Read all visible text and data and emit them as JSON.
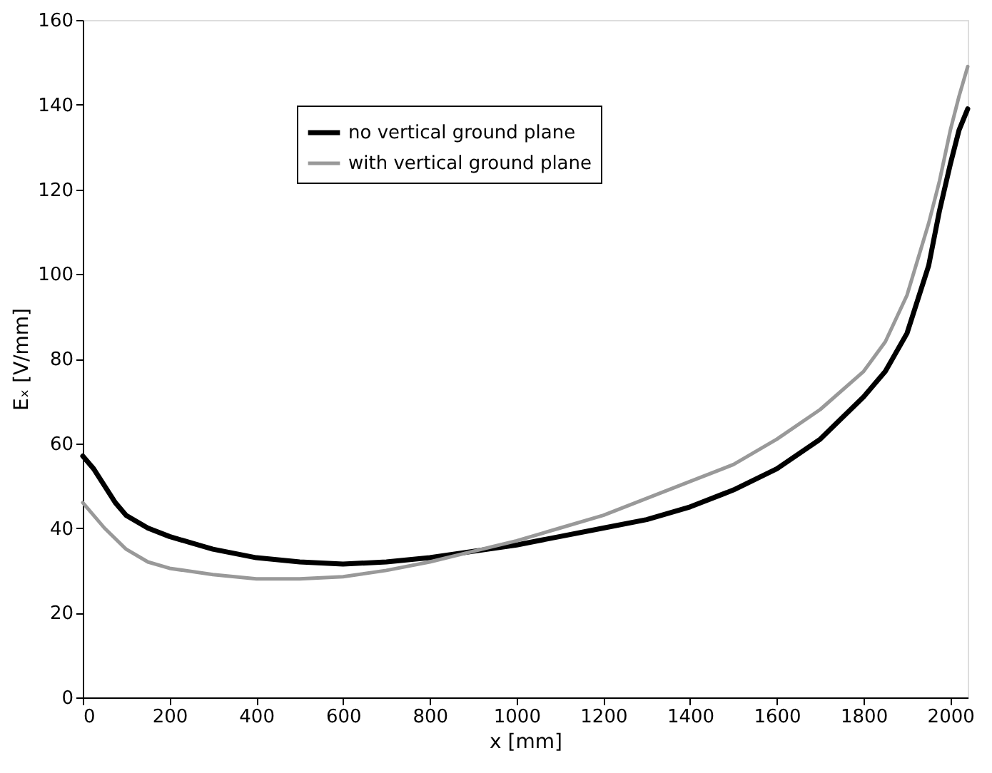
{
  "chart_data": {
    "type": "line",
    "xlabel": "x [mm]",
    "ylabel": "Eₓ [V/mm]",
    "xlim": [
      0,
      2040
    ],
    "ylim": [
      0,
      160
    ],
    "xticks": [
      0,
      200,
      400,
      600,
      800,
      1000,
      1200,
      1400,
      1600,
      1800,
      2000
    ],
    "yticks": [
      0,
      20,
      40,
      60,
      80,
      100,
      120,
      140,
      160
    ],
    "grid": false,
    "legend": "top left",
    "line_style": "solid",
    "marker": "none",
    "series": [
      {
        "name": "no vertical ground plane",
        "color": "#000000",
        "x": [
          0,
          25,
          50,
          75,
          100,
          150,
          200,
          300,
          400,
          500,
          600,
          700,
          800,
          900,
          1000,
          1100,
          1200,
          1300,
          1400,
          1500,
          1600,
          1700,
          1800,
          1850,
          1900,
          1950,
          1975,
          2000,
          2020,
          2040
        ],
        "values": [
          57,
          54,
          50,
          46,
          43,
          40,
          38,
          35,
          33,
          32,
          31.5,
          32,
          33,
          34.5,
          36,
          38,
          40,
          42,
          45,
          49,
          54,
          61,
          71,
          77,
          86,
          102,
          115,
          126,
          134,
          139
        ]
      },
      {
        "name": "with vertical ground plane",
        "color": "#999999",
        "x": [
          0,
          50,
          100,
          150,
          200,
          300,
          400,
          500,
          600,
          700,
          800,
          900,
          1000,
          1100,
          1200,
          1300,
          1400,
          1500,
          1600,
          1700,
          1800,
          1850,
          1900,
          1950,
          1975,
          2000,
          2020,
          2040
        ],
        "values": [
          46,
          40,
          35,
          32,
          30.5,
          29,
          28,
          28,
          28.5,
          30,
          32,
          34.5,
          37,
          40,
          43,
          47,
          51,
          55,
          61,
          68,
          77,
          84,
          95,
          112,
          122,
          134,
          142,
          149
        ]
      }
    ]
  }
}
